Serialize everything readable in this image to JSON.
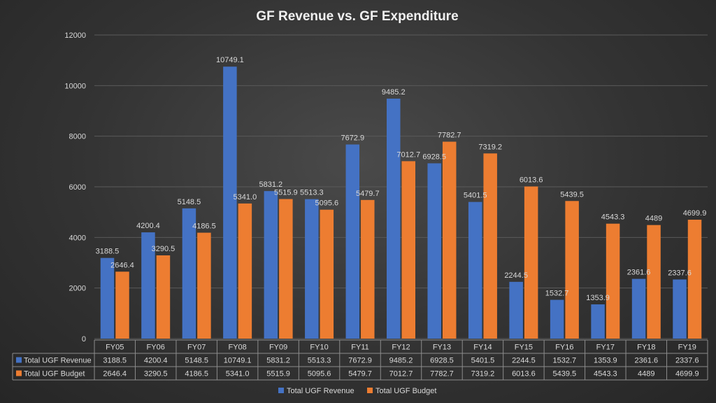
{
  "chart_data": {
    "type": "bar",
    "title": "GF Revenue vs. GF Expenditure",
    "xlabel": "",
    "ylabel": "",
    "ylim": [
      0,
      12000
    ],
    "yticks": [
      0,
      2000,
      4000,
      6000,
      8000,
      10000,
      12000
    ],
    "grid": true,
    "legend": "bottom",
    "data_table": true,
    "categories": [
      "FY05",
      "FY06",
      "FY07",
      "FY08",
      "FY09",
      "FY10",
      "FY11",
      "FY12",
      "FY13",
      "FY14",
      "FY15",
      "FY16",
      "FY17",
      "FY18",
      "FY19"
    ],
    "series": [
      {
        "name": "Total UGF Revenue",
        "color": "#4472c4",
        "values": [
          3188.5,
          4200.4,
          5148.5,
          10749.1,
          5831.2,
          5513.3,
          7672.9,
          9485.2,
          6928.5,
          5401.5,
          2244.5,
          1532.7,
          1353.9,
          2361.6,
          2337.6
        ],
        "labels": [
          "3188.5",
          "4200.4",
          "5148.5",
          "10749.1",
          "5831.2",
          "5513.3",
          "7672.9",
          "9485.2",
          "6928.5",
          "5401.5",
          "2244.5",
          "1532.7",
          "1353.9",
          "2361.6",
          "2337.6"
        ]
      },
      {
        "name": "Total UGF Budget",
        "color": "#ed7d31",
        "values": [
          2646.4,
          3290.5,
          4186.5,
          5341.0,
          5515.9,
          5095.6,
          5479.7,
          7012.7,
          7782.7,
          7319.2,
          6013.6,
          5439.5,
          4543.3,
          4489,
          4699.9
        ],
        "labels": [
          "2646.4",
          "3290.5",
          "4186.5",
          "5341.0",
          "5515.9",
          "5095.6",
          "5479.7",
          "7012.7",
          "7782.7",
          "7319.2",
          "6013.6",
          "5439.5",
          "4543.3",
          "4489",
          "4699.9"
        ]
      }
    ]
  }
}
